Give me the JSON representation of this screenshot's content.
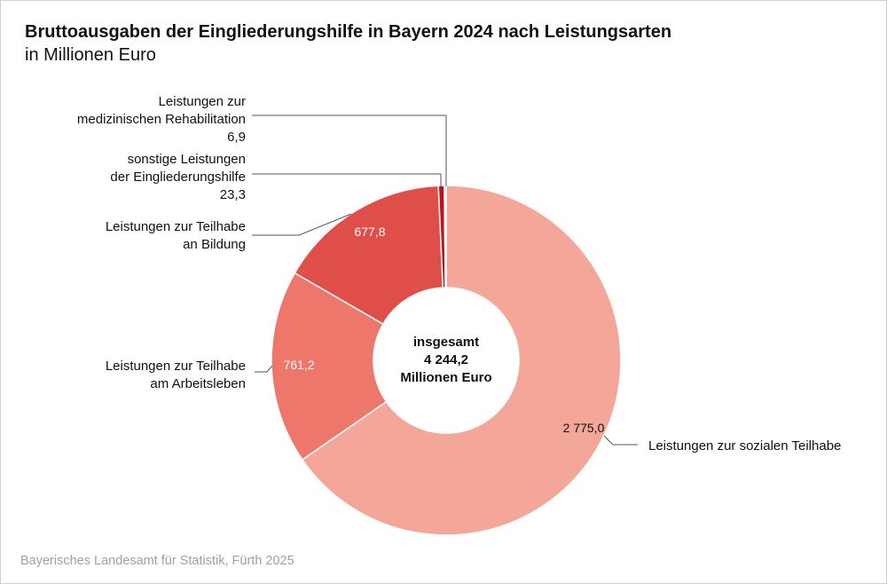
{
  "chart_data": {
    "type": "pie",
    "variant": "donut",
    "title": "Bruttoausgaben der Eingliederungshilfe in Bayern 2024 nach Leistungsarten",
    "subtitle": "in Millionen Euro",
    "center_label": [
      "insgesamt",
      "4 244,2",
      "Millionen Euro"
    ],
    "slices": [
      {
        "label": [
          "Leistungen zur sozialen Teilhabe"
        ],
        "value": 2775.0,
        "value_label": "2 775,0",
        "color": "#f4a698"
      },
      {
        "label": [
          "Leistungen zur Teilhabe",
          "am Arbeitsleben"
        ],
        "value": 761.2,
        "value_label": "761,2",
        "color": "#ee776c"
      },
      {
        "label": [
          "Leistungen zur Teilhabe",
          "an Bildung"
        ],
        "value": 677.8,
        "value_label": "677,8",
        "color": "#e04e49"
      },
      {
        "label": [
          "sonstige Leistungen",
          "der Eingliederungshilfe"
        ],
        "value": 23.3,
        "value_label": "23,3",
        "color": "#c0111a"
      },
      {
        "label": [
          "Leistungen zur",
          "medizinischen Rehabilitation"
        ],
        "value": 6.9,
        "value_label": "6,9",
        "color": "#f6c3b8"
      }
    ],
    "legend": "none"
  },
  "source": "Bayerisches Landesamt für Statistik, Fürth 2025"
}
